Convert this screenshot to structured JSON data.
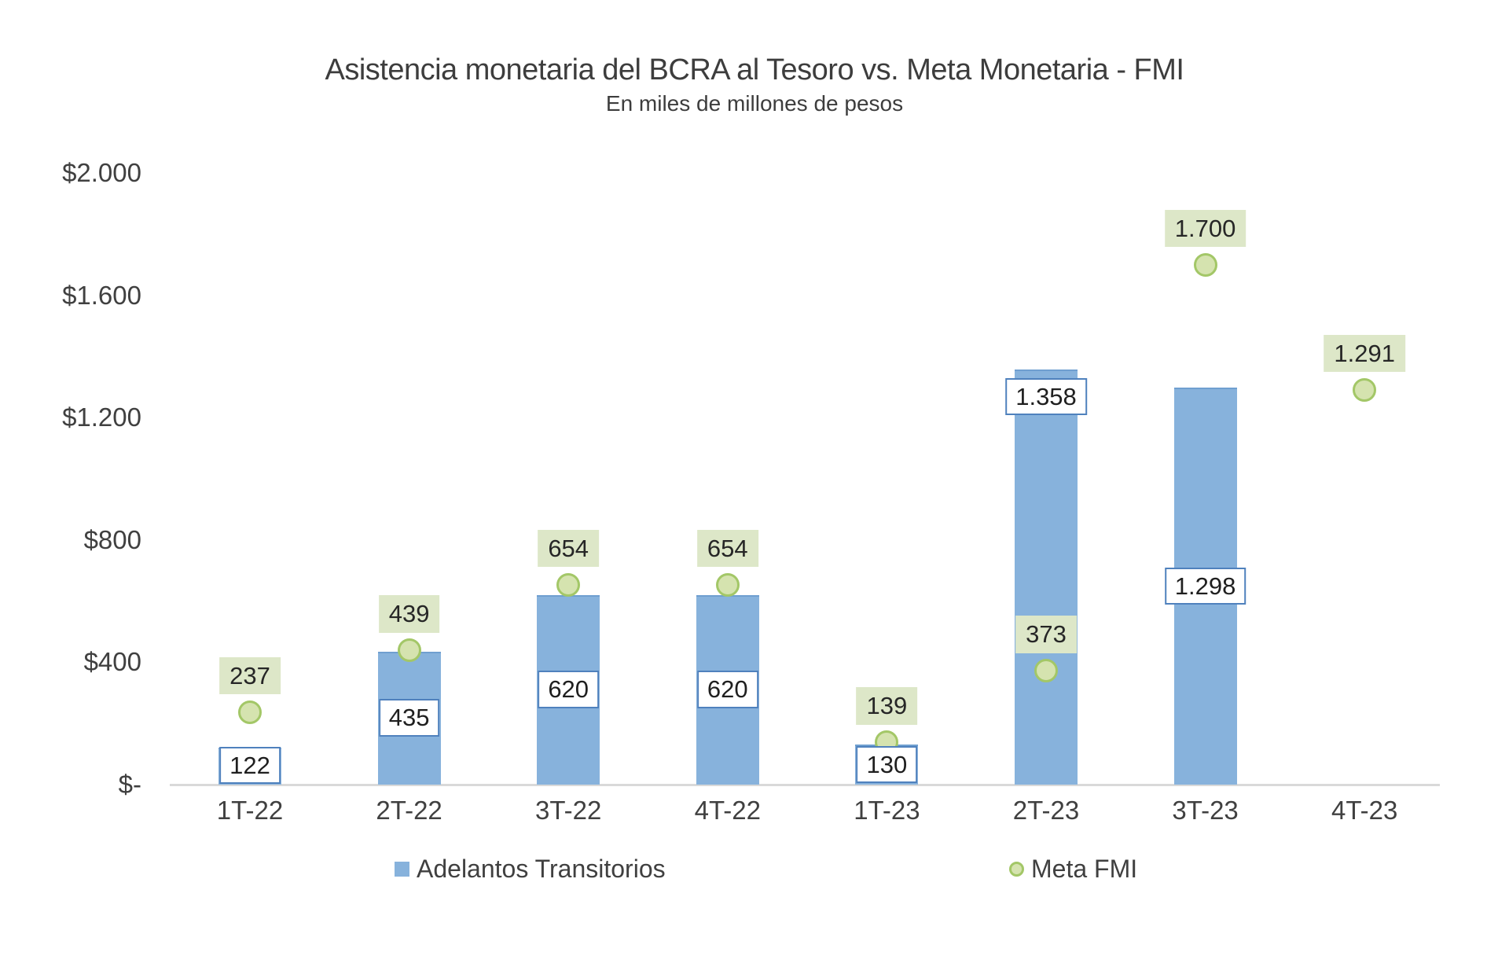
{
  "chart_data": {
    "type": "bar",
    "title": "Asistencia monetaria del BCRA al Tesoro vs. Meta Monetaria - FMI",
    "subtitle": "En miles de millones de pesos",
    "categories": [
      "1T-22",
      "2T-22",
      "3T-22",
      "4T-22",
      "1T-23",
      "2T-23",
      "3T-23",
      "4T-23"
    ],
    "series": [
      {
        "name": "Adelantos Transitorios",
        "type": "bar",
        "color": "#87b2dc",
        "border_color": "#6f9fd0",
        "values": [
          122,
          435,
          620,
          620,
          130,
          1358,
          1298,
          null
        ],
        "labels": [
          "122",
          "435",
          "620",
          "620",
          "130",
          "1.358",
          "1.298",
          ""
        ],
        "label_placement": [
          "center",
          "center",
          "center",
          "center",
          "center",
          "inside-end",
          "center",
          ""
        ],
        "label_bg": "#ffffff",
        "label_border": "#4f81bd"
      },
      {
        "name": "Meta FMI",
        "type": "scatter",
        "marker_fill": "#d5e3af",
        "marker_border": "#a3c767",
        "values": [
          237,
          439,
          654,
          654,
          139,
          373,
          1700,
          1291
        ],
        "labels": [
          "237",
          "439",
          "654",
          "654",
          "139",
          "373",
          "1.700",
          "1.291"
        ],
        "label_bg": "#dde7c8"
      }
    ],
    "y_axis": {
      "min": 0,
      "max": 2000,
      "step": 400,
      "tick_labels": [
        "$-",
        "$400",
        "$800",
        "$1.200",
        "$1.600",
        "$2.000"
      ]
    },
    "x_axis": {
      "line_color": "#d9d9d9"
    },
    "grid": false,
    "legend_position": "bottom",
    "text_color": "#404040"
  }
}
